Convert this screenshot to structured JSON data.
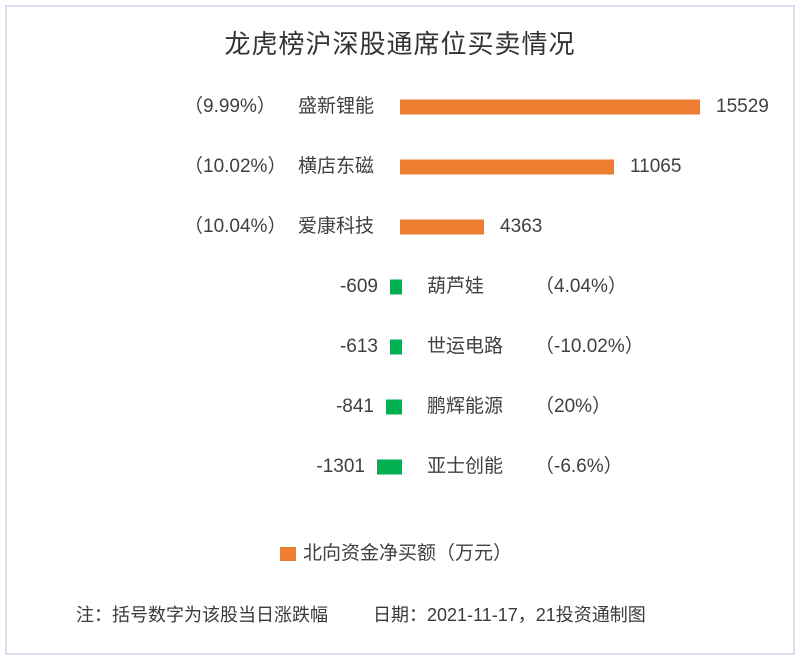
{
  "chart_data": {
    "type": "bar",
    "orientation": "horizontal-diverging",
    "title": "龙虎榜沪深股通席位买卖情况",
    "categories": [
      "盛新锂能",
      "横店东磁",
      "爱康科技",
      "葫芦娃",
      "世运电路",
      "鹏辉能源",
      "亚士创能"
    ],
    "values": [
      15529,
      11065,
      4363,
      -609,
      -613,
      -841,
      -1301
    ],
    "value_labels": [
      "15529",
      "11065",
      "4363",
      "-609",
      "-613",
      "-841",
      "-1301"
    ],
    "pct_labels": [
      "（9.99%）",
      "（10.02%）",
      "（10.04%）",
      "（4.04%）",
      "（-10.02%）",
      "（20%）",
      "（-6.6%）"
    ],
    "legend": {
      "label": "北向资金净买额（万元）",
      "color": "#ED7D31"
    },
    "colors": {
      "positive": "#ED7D31",
      "negative": "#00B050"
    },
    "xlim": [
      -16000,
      16000
    ],
    "grid": false,
    "legend_position": "bottom"
  },
  "footer": {
    "note": "注：括号数字为该股当日涨跌幅",
    "date": "日期：2021-11-17，21投资通制图"
  }
}
